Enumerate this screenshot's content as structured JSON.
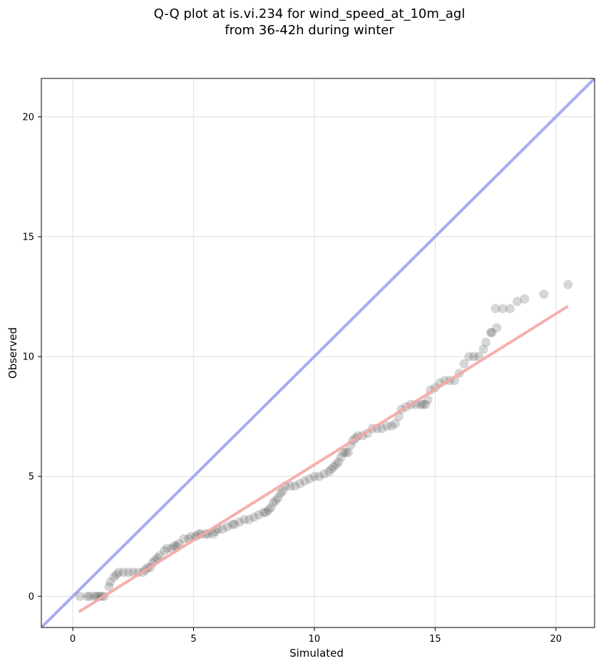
{
  "chart_data": {
    "type": "scatter",
    "title_line1": "Q-Q plot at is.vi.234 for wind_speed_at_10m_agl",
    "title_line2": "from 36-42h during winter",
    "xlabel": "Simulated",
    "ylabel": "Observed",
    "xlim": [
      -1.3,
      21.6
    ],
    "ylim": [
      -1.3,
      21.6
    ],
    "xticks": [
      "0",
      "5",
      "10",
      "15",
      "20"
    ],
    "yticks": [
      "0",
      "5",
      "10",
      "15",
      "20"
    ],
    "grid": true,
    "colors": {
      "points": "#333333",
      "identity_line": "#a9abf1",
      "fit_line": "#f4a7a7",
      "grid": "#e6e6e6"
    },
    "identity_line": {
      "x": [
        -1.3,
        21.6
      ],
      "y": [
        -1.3,
        21.6
      ]
    },
    "fit_line": {
      "x": [
        0.25,
        20.5
      ],
      "y": [
        -0.65,
        12.1
      ]
    },
    "points": [
      [
        0.3,
        0.0
      ],
      [
        0.6,
        0.0
      ],
      [
        0.7,
        0.0
      ],
      [
        0.9,
        0.0
      ],
      [
        1.0,
        0.0
      ],
      [
        1.1,
        0.0
      ],
      [
        1.2,
        0.0
      ],
      [
        1.3,
        0.0
      ],
      [
        1.5,
        0.4
      ],
      [
        1.55,
        0.6
      ],
      [
        1.7,
        0.8
      ],
      [
        1.8,
        0.9
      ],
      [
        1.9,
        1.0
      ],
      [
        2.1,
        1.0
      ],
      [
        2.3,
        1.0
      ],
      [
        2.5,
        1.0
      ],
      [
        2.7,
        1.0
      ],
      [
        2.9,
        1.0
      ],
      [
        3.0,
        1.1
      ],
      [
        3.1,
        1.2
      ],
      [
        3.2,
        1.2
      ],
      [
        3.3,
        1.4
      ],
      [
        3.4,
        1.5
      ],
      [
        3.5,
        1.6
      ],
      [
        3.6,
        1.7
      ],
      [
        3.8,
        1.9
      ],
      [
        3.9,
        2.0
      ],
      [
        4.1,
        2.0
      ],
      [
        4.2,
        2.1
      ],
      [
        4.3,
        2.1
      ],
      [
        4.4,
        2.2
      ],
      [
        4.6,
        2.4
      ],
      [
        4.8,
        2.4
      ],
      [
        4.9,
        2.5
      ],
      [
        5.1,
        2.5
      ],
      [
        5.2,
        2.6
      ],
      [
        5.3,
        2.6
      ],
      [
        5.5,
        2.6
      ],
      [
        5.6,
        2.6
      ],
      [
        5.8,
        2.6
      ],
      [
        5.9,
        2.7
      ],
      [
        6.0,
        2.8
      ],
      [
        6.2,
        2.8
      ],
      [
        6.4,
        2.9
      ],
      [
        6.6,
        3.0
      ],
      [
        6.7,
        3.0
      ],
      [
        6.9,
        3.1
      ],
      [
        7.1,
        3.2
      ],
      [
        7.3,
        3.2
      ],
      [
        7.5,
        3.3
      ],
      [
        7.7,
        3.4
      ],
      [
        7.9,
        3.5
      ],
      [
        8.0,
        3.5
      ],
      [
        8.1,
        3.6
      ],
      [
        8.2,
        3.7
      ],
      [
        8.3,
        3.9
      ],
      [
        8.4,
        4.0
      ],
      [
        8.5,
        4.1
      ],
      [
        8.6,
        4.3
      ],
      [
        8.7,
        4.4
      ],
      [
        8.8,
        4.6
      ],
      [
        9.0,
        4.6
      ],
      [
        9.2,
        4.6
      ],
      [
        9.4,
        4.7
      ],
      [
        9.6,
        4.8
      ],
      [
        9.8,
        4.9
      ],
      [
        10.0,
        5.0
      ],
      [
        10.2,
        5.0
      ],
      [
        10.4,
        5.1
      ],
      [
        10.6,
        5.2
      ],
      [
        10.7,
        5.3
      ],
      [
        10.8,
        5.4
      ],
      [
        10.9,
        5.5
      ],
      [
        11.0,
        5.6
      ],
      [
        11.1,
        5.8
      ],
      [
        11.2,
        6.0
      ],
      [
        11.3,
        6.0
      ],
      [
        11.4,
        6.0
      ],
      [
        11.5,
        6.3
      ],
      [
        11.6,
        6.5
      ],
      [
        11.7,
        6.6
      ],
      [
        11.8,
        6.7
      ],
      [
        12.0,
        6.7
      ],
      [
        12.2,
        6.8
      ],
      [
        12.4,
        7.0
      ],
      [
        12.6,
        7.0
      ],
      [
        12.8,
        7.0
      ],
      [
        13.0,
        7.1
      ],
      [
        13.2,
        7.1
      ],
      [
        13.35,
        7.2
      ],
      [
        13.5,
        7.5
      ],
      [
        13.6,
        7.8
      ],
      [
        13.8,
        7.9
      ],
      [
        14.0,
        8.0
      ],
      [
        14.2,
        8.0
      ],
      [
        14.4,
        8.0
      ],
      [
        14.5,
        8.0
      ],
      [
        14.6,
        8.0
      ],
      [
        14.7,
        8.2
      ],
      [
        14.8,
        8.6
      ],
      [
        15.0,
        8.7
      ],
      [
        15.2,
        8.9
      ],
      [
        15.4,
        9.0
      ],
      [
        15.6,
        9.0
      ],
      [
        15.8,
        9.0
      ],
      [
        16.0,
        9.3
      ],
      [
        16.2,
        9.7
      ],
      [
        16.4,
        10.0
      ],
      [
        16.6,
        10.0
      ],
      [
        16.8,
        10.0
      ],
      [
        17.0,
        10.3
      ],
      [
        17.1,
        10.6
      ],
      [
        17.3,
        11.0
      ],
      [
        17.35,
        11.0
      ],
      [
        17.55,
        11.2
      ],
      [
        17.5,
        12.0
      ],
      [
        17.8,
        12.0
      ],
      [
        18.1,
        12.0
      ],
      [
        18.4,
        12.3
      ],
      [
        18.7,
        12.4
      ],
      [
        19.5,
        12.6
      ],
      [
        20.5,
        13.0
      ]
    ]
  }
}
